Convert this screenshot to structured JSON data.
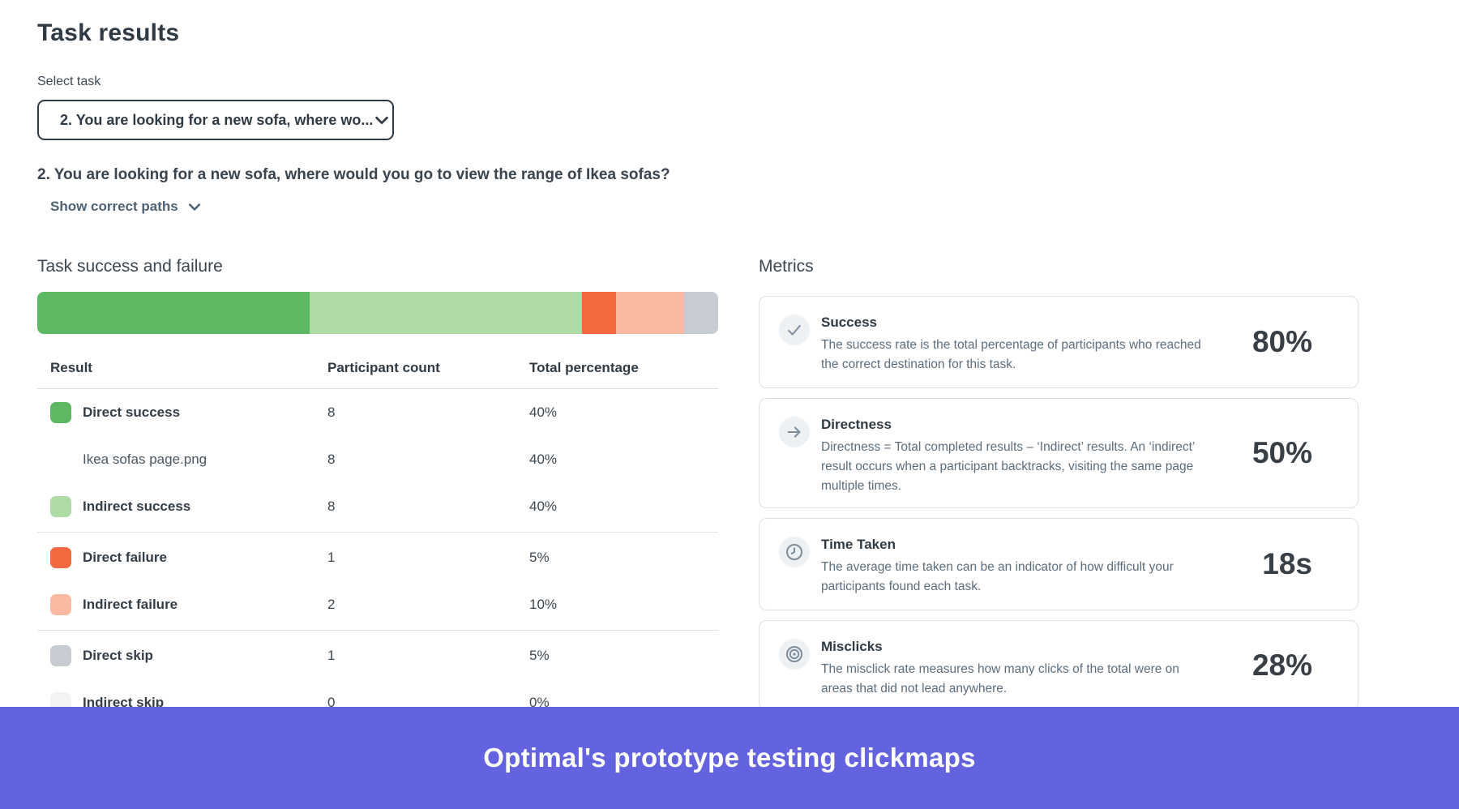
{
  "page": {
    "title": "Task results"
  },
  "task_selector": {
    "label": "Select task",
    "value": "2. You are looking for a new sofa, where wo..."
  },
  "question": "2. You are looking for a new sofa, where would you go to view the range of Ikea sofas?",
  "show_correct_paths_label": "Show correct paths",
  "results_section": {
    "title": "Task success and failure"
  },
  "chart_data": {
    "type": "bar",
    "variant": "stacked-horizontal-100pct",
    "title": "Task success and failure",
    "legend_position": "table-below",
    "segments": [
      {
        "label": "Direct success",
        "value_pct": 40,
        "color": "#5cb863"
      },
      {
        "label": "Indirect success",
        "value_pct": 40,
        "color": "#aedaa6"
      },
      {
        "label": "Direct failure",
        "value_pct": 5,
        "color": "#f2683f"
      },
      {
        "label": "Indirect failure",
        "value_pct": 10,
        "color": "#fcb9a2"
      },
      {
        "label": "Direct skip",
        "value_pct": 5,
        "color": "#c6ccd2"
      },
      {
        "label": "Indirect skip",
        "value_pct": 0,
        "color": "#f2f3f4"
      }
    ]
  },
  "table": {
    "columns": [
      "Result",
      "Participant count",
      "Total percentage"
    ],
    "rows": [
      {
        "label": "Direct success",
        "swatch": "#5cb863",
        "indent": false,
        "bold": true,
        "count": "8",
        "percentage": "40%",
        "divider_after": false
      },
      {
        "label": "Ikea sofas page.png",
        "swatch": null,
        "indent": true,
        "bold": false,
        "count": "8",
        "percentage": "40%",
        "divider_after": false
      },
      {
        "label": "Indirect success",
        "swatch": "#aedaa6",
        "indent": false,
        "bold": true,
        "count": "8",
        "percentage": "40%",
        "divider_after": true
      },
      {
        "label": "Direct failure",
        "swatch": "#f2683f",
        "indent": false,
        "bold": true,
        "count": "1",
        "percentage": "5%",
        "divider_after": false
      },
      {
        "label": "Indirect failure",
        "swatch": "#fcb9a2",
        "indent": false,
        "bold": true,
        "count": "2",
        "percentage": "10%",
        "divider_after": true
      },
      {
        "label": "Direct skip",
        "swatch": "#c6ccd2",
        "indent": false,
        "bold": true,
        "count": "1",
        "percentage": "5%",
        "divider_after": false
      },
      {
        "label": "Indirect skip",
        "swatch": "#f2f3f4",
        "indent": false,
        "bold": true,
        "count": "0",
        "percentage": "0%",
        "divider_after": false
      }
    ]
  },
  "metrics": {
    "title": "Metrics",
    "cards": [
      {
        "icon": "check-icon",
        "title": "Success",
        "description": "The success rate is the total percentage of participants who reached the correct destination for this task.",
        "value": "80%"
      },
      {
        "icon": "arrow-right-icon",
        "title": "Directness",
        "description": "Directness = Total completed results – ‘Indirect’ results. An ‘indirect’ result occurs when a participant backtracks, visiting the same page multiple times.",
        "value": "50%"
      },
      {
        "icon": "clock-icon",
        "title": "Time Taken",
        "description": "The average time taken can be an indicator of how difficult your participants found each task.",
        "value": "18s"
      },
      {
        "icon": "target-icon",
        "title": "Misclicks",
        "description": "The misclick rate measures how many clicks of the total were on areas that did not lead anywhere.",
        "value": "28%"
      }
    ]
  },
  "banner": {
    "text": "Optimal's prototype testing clickmaps",
    "background": "#6363e0"
  },
  "colors": {
    "dark_text": "#2f3a44",
    "slate_link": "#4e6276",
    "description_text": "#5c6d7d",
    "card_border": "#dde1e6",
    "banner_purple": "#6363e0"
  }
}
